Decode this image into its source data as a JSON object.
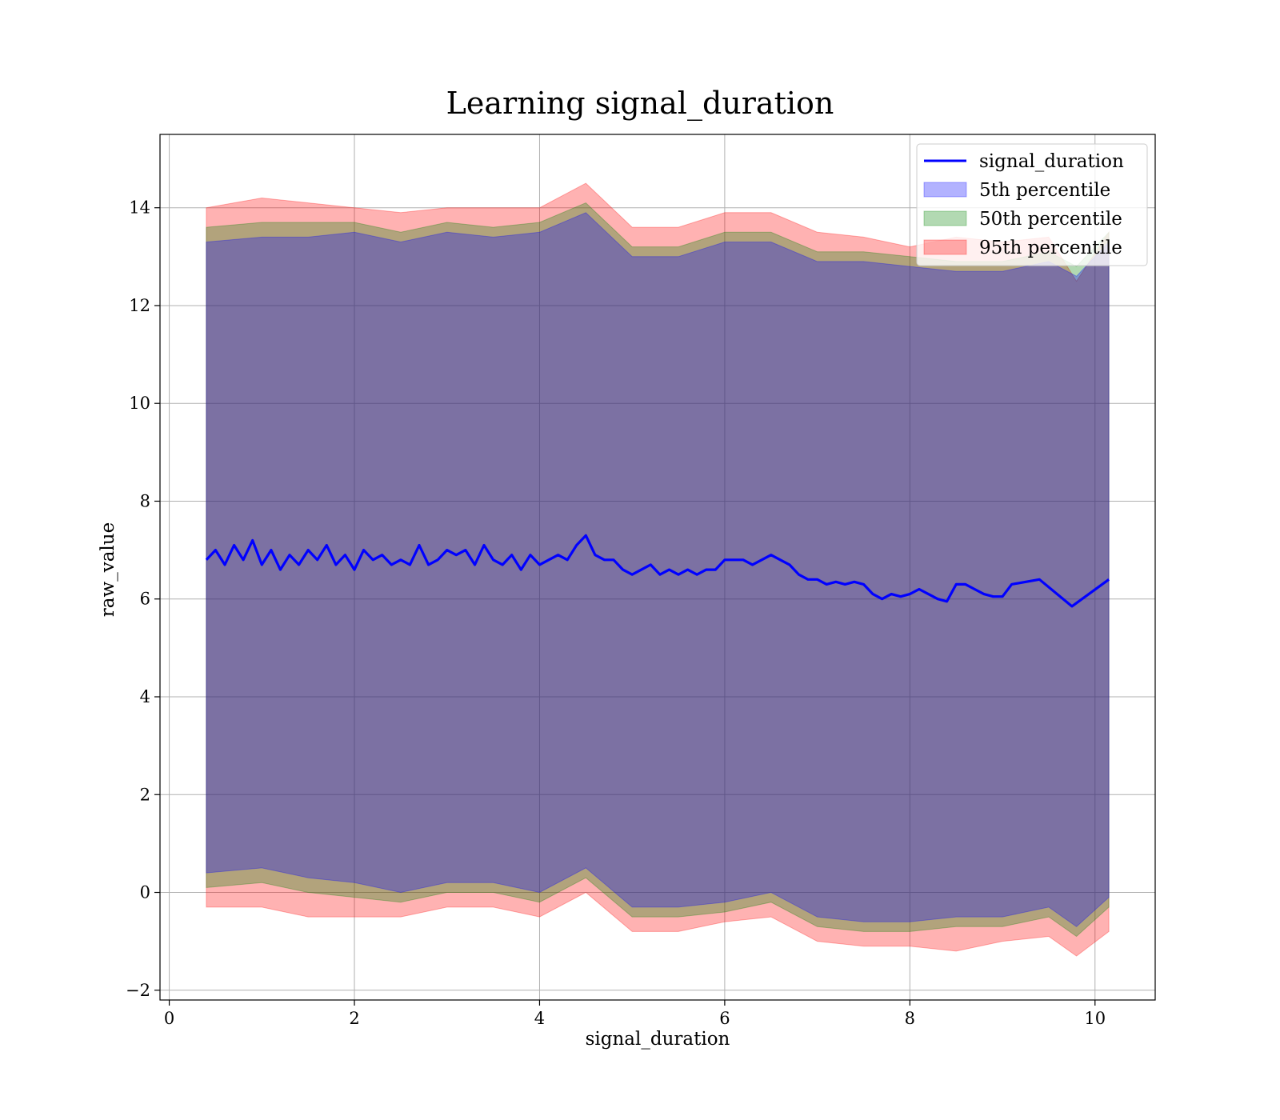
{
  "chart_data": {
    "type": "line",
    "title": "Learning signal_duration",
    "xlabel": "signal_duration",
    "ylabel": "raw_value",
    "xlim": [
      -0.1,
      10.65
    ],
    "ylim": [
      -2.2,
      15.5
    ],
    "x_ticks": [
      0,
      2,
      4,
      6,
      8,
      10
    ],
    "y_ticks": [
      -2,
      0,
      2,
      4,
      6,
      8,
      10,
      12,
      14
    ],
    "x_tick_labels": [
      "0",
      "2",
      "4",
      "6",
      "8",
      "10"
    ],
    "y_tick_labels": [
      "−2",
      "0",
      "2",
      "4",
      "6",
      "8",
      "10",
      "12",
      "14"
    ],
    "grid": true,
    "legend_position": "top-right",
    "colors": {
      "line": "#0000ff",
      "band_5th": "#0000ff",
      "band_50th": "#008000",
      "band_95th": "#ff0000"
    },
    "series": [
      {
        "name": "signal_duration",
        "kind": "line",
        "x": [
          0.4,
          0.5,
          0.6,
          0.7,
          0.8,
          0.9,
          1.0,
          1.1,
          1.2,
          1.3,
          1.4,
          1.5,
          1.6,
          1.7,
          1.8,
          1.9,
          2.0,
          2.1,
          2.2,
          2.3,
          2.4,
          2.5,
          2.6,
          2.7,
          2.8,
          2.9,
          3.0,
          3.1,
          3.2,
          3.3,
          3.4,
          3.5,
          3.6,
          3.7,
          3.8,
          3.9,
          4.0,
          4.1,
          4.2,
          4.3,
          4.4,
          4.5,
          4.6,
          4.7,
          4.8,
          4.9,
          5.0,
          5.1,
          5.2,
          5.3,
          5.4,
          5.5,
          5.6,
          5.7,
          5.8,
          5.9,
          6.0,
          6.1,
          6.2,
          6.3,
          6.4,
          6.5,
          6.6,
          6.7,
          6.8,
          6.9,
          7.0,
          7.1,
          7.2,
          7.3,
          7.4,
          7.5,
          7.6,
          7.7,
          7.8,
          7.9,
          8.0,
          8.1,
          8.2,
          8.3,
          8.4,
          8.5,
          8.6,
          8.7,
          8.8,
          8.9,
          9.0,
          9.1,
          9.4,
          9.75,
          10.15
        ],
        "y": [
          6.8,
          7.0,
          6.7,
          7.1,
          6.8,
          7.2,
          6.7,
          7.0,
          6.6,
          6.9,
          6.7,
          7.0,
          6.8,
          7.1,
          6.7,
          6.9,
          6.6,
          7.0,
          6.8,
          6.9,
          6.7,
          6.8,
          6.7,
          7.1,
          6.7,
          6.8,
          7.0,
          6.9,
          7.0,
          6.7,
          7.1,
          6.8,
          6.7,
          6.9,
          6.6,
          6.9,
          6.7,
          6.8,
          6.9,
          6.8,
          7.1,
          7.3,
          6.9,
          6.8,
          6.8,
          6.6,
          6.5,
          6.6,
          6.7,
          6.5,
          6.6,
          6.5,
          6.6,
          6.5,
          6.6,
          6.6,
          6.8,
          6.8,
          6.8,
          6.7,
          6.8,
          6.9,
          6.8,
          6.7,
          6.5,
          6.4,
          6.4,
          6.3,
          6.35,
          6.3,
          6.35,
          6.3,
          6.1,
          6.0,
          6.1,
          6.05,
          6.1,
          6.2,
          6.1,
          6.0,
          5.95,
          6.3,
          6.3,
          6.2,
          6.1,
          6.05,
          6.05,
          6.3,
          6.4,
          5.85,
          6.4
        ]
      },
      {
        "name": "5th percentile",
        "kind": "band",
        "x": [
          0.4,
          1.0,
          1.5,
          2.0,
          2.5,
          3.0,
          3.5,
          4.0,
          4.5,
          5.0,
          5.5,
          6.0,
          6.5,
          7.0,
          7.5,
          8.0,
          8.5,
          9.0,
          9.5,
          9.8,
          10.15
        ],
        "lower": [
          0.4,
          0.5,
          0.3,
          0.2,
          0.0,
          0.2,
          0.2,
          0.0,
          0.5,
          -0.3,
          -0.3,
          -0.2,
          0.0,
          -0.5,
          -0.6,
          -0.6,
          -0.5,
          -0.5,
          -0.3,
          -0.7,
          -0.1
        ],
        "upper": [
          13.3,
          13.4,
          13.4,
          13.5,
          13.3,
          13.5,
          13.4,
          13.5,
          13.9,
          13.0,
          13.0,
          13.3,
          13.3,
          12.9,
          12.9,
          12.8,
          12.7,
          12.7,
          12.9,
          12.6,
          13.3
        ]
      },
      {
        "name": "50th percentile",
        "kind": "band",
        "x": [
          0.4,
          1.0,
          1.5,
          2.0,
          2.5,
          3.0,
          3.5,
          4.0,
          4.5,
          5.0,
          5.5,
          6.0,
          6.5,
          7.0,
          7.5,
          8.0,
          8.5,
          9.0,
          9.5,
          9.8,
          10.15
        ],
        "lower": [
          0.1,
          0.2,
          0.0,
          -0.1,
          -0.2,
          0.0,
          0.0,
          -0.2,
          0.3,
          -0.5,
          -0.5,
          -0.4,
          -0.2,
          -0.7,
          -0.8,
          -0.8,
          -0.7,
          -0.7,
          -0.5,
          -0.9,
          -0.3
        ],
        "upper": [
          13.6,
          13.7,
          13.7,
          13.7,
          13.5,
          13.7,
          13.6,
          13.7,
          14.1,
          13.2,
          13.2,
          13.5,
          13.5,
          13.1,
          13.1,
          13.0,
          12.9,
          12.9,
          13.1,
          12.8,
          13.5
        ]
      },
      {
        "name": "95th percentile",
        "kind": "band",
        "x": [
          0.4,
          1.0,
          1.5,
          2.0,
          2.5,
          3.0,
          3.5,
          4.0,
          4.5,
          5.0,
          5.5,
          6.0,
          6.5,
          7.0,
          7.5,
          8.0,
          8.5,
          9.0,
          9.5,
          9.8,
          10.15
        ],
        "lower": [
          -0.3,
          -0.3,
          -0.5,
          -0.5,
          -0.5,
          -0.3,
          -0.3,
          -0.5,
          0.0,
          -0.8,
          -0.8,
          -0.6,
          -0.5,
          -1.0,
          -1.1,
          -1.1,
          -1.2,
          -1.0,
          -0.9,
          -1.3,
          -0.8
        ],
        "upper": [
          14.0,
          14.2,
          14.1,
          14.0,
          13.9,
          14.0,
          14.0,
          14.0,
          14.5,
          13.6,
          13.6,
          13.9,
          13.9,
          13.5,
          13.4,
          13.2,
          13.4,
          13.3,
          13.4,
          12.5,
          13.5
        ]
      }
    ]
  }
}
